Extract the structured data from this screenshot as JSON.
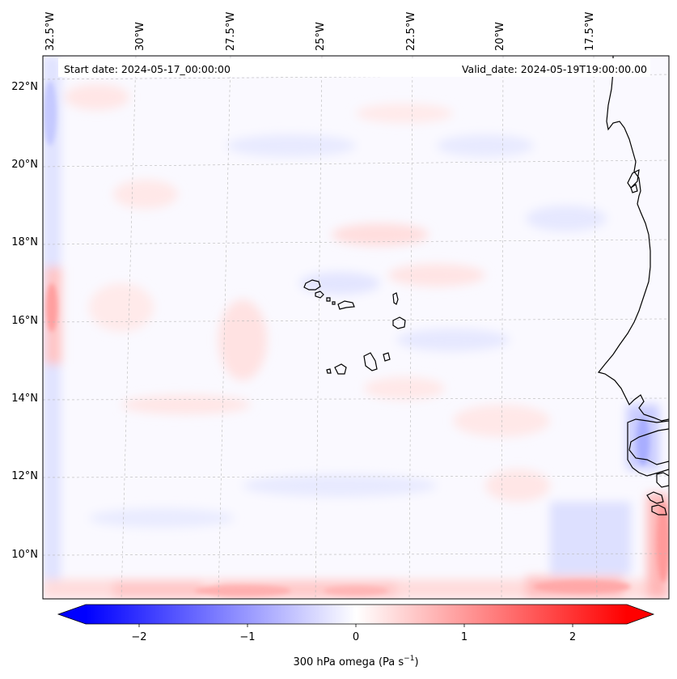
{
  "header": {
    "start_label": "Start date: 2024-05-17_00:00:00",
    "valid_label": "Valid_date: 2024-05-19T19:00:00.00"
  },
  "longitude_ticks": [
    "32.5°W",
    "30°W",
    "27.5°W",
    "25°W",
    "22.5°W",
    "20°W",
    "17.5°W"
  ],
  "latitude_ticks": [
    "22°N",
    "20°N",
    "18°N",
    "16°N",
    "14°N",
    "12°N",
    "10°N"
  ],
  "colorbar": {
    "tick_labels": [
      "−2",
      "−1",
      "0",
      "1",
      "2"
    ],
    "label_prefix": "300 hPa omega (Pa s",
    "label_exp": "−1",
    "label_suffix": ")",
    "range": [
      -2.5,
      2.5
    ],
    "levels": 50,
    "colormap": "bwr",
    "extend": "both"
  },
  "colors": {
    "negative": "#0000ff",
    "zero": "#ffffff",
    "positive": "#ff0000",
    "coastline": "#000000",
    "gridline": "#b0b0b0"
  },
  "gridlines": "dashed"
}
